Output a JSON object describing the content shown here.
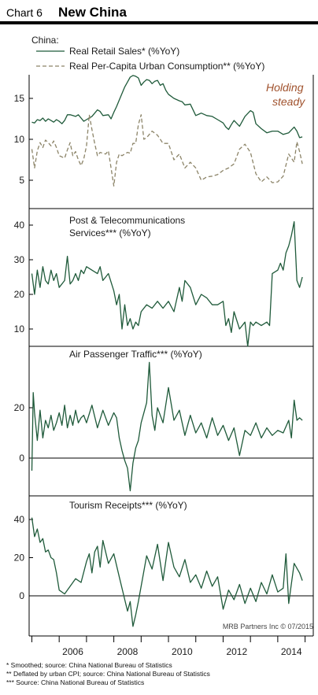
{
  "header": {
    "chart_number": "Chart 6",
    "title": "New China"
  },
  "credit": "MRB Partners Inc © 07/2015",
  "footnotes": [
    "*   Smoothed; source: China National Bureau of Statistics",
    "**  Deflated by urban CPI; source: China National Bureau of Statistics",
    "*** Source: China National Bureau of Statistics"
  ],
  "colors": {
    "retail": "#1f5a3a",
    "consumption": "#8c8468",
    "annotation": "#a0522d",
    "axis": "#000000"
  },
  "chart_data": [
    {
      "type": "line",
      "legend_title": "China:",
      "annotation": [
        "Holding",
        "steady"
      ],
      "x_range": [
        2004.9,
        2015.3
      ],
      "ylim": [
        3,
        19
      ],
      "yticks": [
        5,
        10,
        15
      ],
      "series": [
        {
          "name": "Real Retail Sales* (%YoY)",
          "style": "solid",
          "x": [
            2005.0,
            2005.1,
            2005.2,
            2005.3,
            2005.4,
            2005.5,
            2005.6,
            2005.7,
            2005.8,
            2005.9,
            2006.0,
            2006.1,
            2006.2,
            2006.3,
            2006.4,
            2006.5,
            2006.6,
            2006.7,
            2006.8,
            2006.9,
            2007.0,
            2007.2,
            2007.4,
            2007.5,
            2007.6,
            2007.8,
            2007.9,
            2008.0,
            2008.1,
            2008.2,
            2008.3,
            2008.4,
            2008.5,
            2008.6,
            2008.7,
            2008.8,
            2008.9,
            2009.0,
            2009.1,
            2009.2,
            2009.3,
            2009.4,
            2009.5,
            2009.6,
            2009.7,
            2009.8,
            2009.9,
            2010.0,
            2010.2,
            2010.4,
            2010.5,
            2010.6,
            2010.8,
            2011.0,
            2011.2,
            2011.4,
            2011.6,
            2011.8,
            2012.0,
            2012.1,
            2012.2,
            2012.3,
            2012.4,
            2012.6,
            2012.8,
            2013.0,
            2013.1,
            2013.2,
            2013.4,
            2013.6,
            2013.8,
            2014.0,
            2014.2,
            2014.4,
            2014.6,
            2014.7,
            2014.8,
            2014.9
          ],
          "y": [
            12.1,
            12.0,
            12.4,
            12.3,
            12.6,
            12.2,
            12.5,
            12.3,
            12.1,
            12.4,
            12.2,
            11.9,
            12.3,
            13.0,
            13.0,
            12.9,
            12.8,
            13.0,
            12.6,
            12.2,
            12.4,
            12.8,
            13.6,
            13.4,
            12.9,
            13.0,
            12.5,
            13.3,
            14.0,
            14.8,
            15.6,
            16.4,
            17.0,
            17.6,
            17.8,
            17.7,
            17.5,
            16.6,
            17.0,
            17.3,
            17.2,
            16.8,
            17.1,
            17.2,
            16.6,
            16.8,
            16.0,
            15.5,
            15.0,
            14.7,
            14.6,
            14.2,
            14.3,
            12.9,
            13.2,
            12.9,
            12.8,
            12.4,
            12.0,
            11.5,
            11.2,
            11.8,
            12.3,
            11.6,
            12.8,
            13.5,
            13.3,
            11.9,
            11.3,
            10.8,
            11.0,
            11.0,
            10.6,
            10.8,
            11.5,
            11.0,
            10.2,
            10.3
          ]
        },
        {
          "name": "Real Per-Capita Urban Consumption** (%YoY)",
          "style": "dashed",
          "x": [
            2005.0,
            2005.1,
            2005.2,
            2005.3,
            2005.4,
            2005.5,
            2005.6,
            2005.7,
            2005.8,
            2005.9,
            2006.0,
            2006.2,
            2006.3,
            2006.4,
            2006.5,
            2006.6,
            2006.7,
            2006.8,
            2006.9,
            2007.0,
            2007.1,
            2007.2,
            2007.3,
            2007.4,
            2007.5,
            2007.6,
            2007.7,
            2007.8,
            2007.9,
            2008.0,
            2008.1,
            2008.2,
            2008.3,
            2008.4,
            2008.5,
            2008.6,
            2008.7,
            2008.8,
            2008.9,
            2009.0,
            2009.1,
            2009.2,
            2009.3,
            2009.4,
            2009.6,
            2009.8,
            2010.0,
            2010.2,
            2010.4,
            2010.6,
            2010.8,
            2011.0,
            2011.2,
            2011.4,
            2011.6,
            2011.8,
            2012.0,
            2012.2,
            2012.4,
            2012.6,
            2012.8,
            2013.0,
            2013.2,
            2013.4,
            2013.6,
            2013.8,
            2014.0,
            2014.2,
            2014.4,
            2014.6,
            2014.7,
            2014.8,
            2014.9
          ],
          "y": [
            8.8,
            6.5,
            8.6,
            9.6,
            9.0,
            9.9,
            9.6,
            9.2,
            9.8,
            9.0,
            8.0,
            7.7,
            8.7,
            9.6,
            8.0,
            8.5,
            7.5,
            6.8,
            7.6,
            9.2,
            13.0,
            11.2,
            9.5,
            8.0,
            8.4,
            8.3,
            8.2,
            8.6,
            6.5,
            4.3,
            7.2,
            8.2,
            8.0,
            8.2,
            8.4,
            8.3,
            9.5,
            9.5,
            11.8,
            13.0,
            10.0,
            10.2,
            10.6,
            11.0,
            10.5,
            9.5,
            9.5,
            7.5,
            8.2,
            6.5,
            7.2,
            6.5,
            5.0,
            5.4,
            5.5,
            5.7,
            6.2,
            6.5,
            7.0,
            8.8,
            9.4,
            8.4,
            5.8,
            4.8,
            5.4,
            4.7,
            4.8,
            5.5,
            8.2,
            7.2,
            9.7,
            8.5,
            7.0
          ]
        }
      ]
    },
    {
      "type": "line",
      "title_lines": [
        "Post & Telecommunications",
        "Services*** (%YoY)"
      ],
      "x_range": [
        2004.9,
        2015.3
      ],
      "ylim": [
        7,
        44
      ],
      "yticks": [
        10,
        20,
        30,
        40
      ],
      "series": [
        {
          "name": "",
          "style": "solid",
          "x": [
            2005.0,
            2005.1,
            2005.2,
            2005.3,
            2005.4,
            2005.5,
            2005.6,
            2005.7,
            2005.8,
            2005.9,
            2006.0,
            2006.2,
            2006.3,
            2006.4,
            2006.5,
            2006.6,
            2006.7,
            2006.8,
            2006.9,
            2007.0,
            2007.2,
            2007.4,
            2007.5,
            2007.6,
            2007.8,
            2008.0,
            2008.1,
            2008.2,
            2008.3,
            2008.4,
            2008.5,
            2008.6,
            2008.7,
            2008.8,
            2008.9,
            2009.0,
            2009.2,
            2009.4,
            2009.6,
            2009.8,
            2010.0,
            2010.2,
            2010.4,
            2010.5,
            2010.6,
            2010.8,
            2011.0,
            2011.2,
            2011.4,
            2011.6,
            2011.8,
            2012.0,
            2012.1,
            2012.2,
            2012.3,
            2012.4,
            2012.6,
            2012.8,
            2012.9,
            2013.0,
            2013.1,
            2013.2,
            2013.4,
            2013.6,
            2013.7,
            2013.8,
            2014.0,
            2014.1,
            2014.2,
            2014.3,
            2014.4,
            2014.5,
            2014.6,
            2014.7,
            2014.8,
            2014.9
          ],
          "y": [
            26.0,
            20.0,
            27.0,
            22.0,
            28.0,
            24.0,
            23.0,
            27.0,
            24.0,
            26.0,
            22.0,
            24.0,
            31.0,
            23.0,
            24.0,
            26.0,
            24.0,
            27.0,
            26.0,
            28.0,
            27.0,
            26.0,
            28.0,
            24.0,
            26.0,
            21.0,
            17.0,
            20.0,
            10.0,
            17.0,
            11.0,
            13.0,
            10.0,
            12.0,
            11.0,
            15.0,
            17.0,
            16.0,
            18.0,
            16.0,
            18.0,
            15.0,
            22.0,
            18.0,
            24.0,
            22.0,
            17.0,
            20.0,
            19.0,
            17.0,
            17.0,
            18.0,
            11.0,
            13.0,
            9.0,
            15.0,
            10.0,
            12.0,
            5.0,
            12.0,
            11.0,
            12.0,
            11.0,
            12.0,
            11.0,
            26.0,
            27.0,
            29.0,
            27.0,
            32.0,
            34.0,
            37.0,
            41.0,
            24.0,
            22.0,
            25.0
          ]
        }
      ]
    },
    {
      "type": "line",
      "title": "Air Passenger Traffic*** (%YoY)",
      "x_range": [
        2004.9,
        2015.3
      ],
      "ylim": [
        -13,
        40
      ],
      "yticks": [
        0,
        20
      ],
      "series": [
        {
          "name": "",
          "style": "solid",
          "x": [
            2005.0,
            2005.05,
            2005.1,
            2005.2,
            2005.3,
            2005.4,
            2005.5,
            2005.6,
            2005.7,
            2005.8,
            2005.9,
            2006.0,
            2006.1,
            2006.2,
            2006.3,
            2006.4,
            2006.5,
            2006.6,
            2006.7,
            2006.8,
            2006.9,
            2007.0,
            2007.2,
            2007.4,
            2007.6,
            2007.8,
            2008.0,
            2008.1,
            2008.2,
            2008.3,
            2008.4,
            2008.5,
            2008.6,
            2008.7,
            2008.8,
            2008.9,
            2009.0,
            2009.1,
            2009.2,
            2009.3,
            2009.4,
            2009.5,
            2009.6,
            2009.8,
            2010.0,
            2010.2,
            2010.4,
            2010.6,
            2010.8,
            2011.0,
            2011.2,
            2011.4,
            2011.6,
            2011.8,
            2012.0,
            2012.2,
            2012.4,
            2012.6,
            2012.8,
            2013.0,
            2013.2,
            2013.4,
            2013.6,
            2013.8,
            2014.0,
            2014.2,
            2014.4,
            2014.5,
            2014.6,
            2014.7,
            2014.8,
            2014.9
          ],
          "y": [
            -5.0,
            26.0,
            18.0,
            7.0,
            19.0,
            8.0,
            15.0,
            12.0,
            17.0,
            11.0,
            14.0,
            18.0,
            13.0,
            21.0,
            12.0,
            17.0,
            13.0,
            19.0,
            14.0,
            16.0,
            17.0,
            14.0,
            21.0,
            12.0,
            19.0,
            13.0,
            18.0,
            16.0,
            8.0,
            3.0,
            -1.0,
            -4.0,
            -13.0,
            -2.0,
            4.0,
            7.0,
            14.0,
            18.0,
            22.0,
            38.0,
            17.0,
            11.0,
            20.0,
            14.0,
            28.0,
            15.0,
            19.0,
            9.0,
            17.0,
            10.0,
            14.0,
            8.0,
            16.0,
            9.0,
            13.0,
            7.0,
            12.0,
            1.0,
            11.0,
            9.0,
            14.0,
            8.0,
            12.0,
            9.0,
            11.0,
            10.0,
            15.0,
            8.0,
            23.0,
            15.0,
            16.0,
            15.0
          ]
        }
      ]
    },
    {
      "type": "line",
      "title": "Tourism Receipts*** (%YoY)",
      "x_range": [
        2004.9,
        2015.3
      ],
      "ylim": [
        -17,
        42
      ],
      "yticks": [
        0,
        20,
        40
      ],
      "series": [
        {
          "name": "",
          "style": "solid",
          "x": [
            2005.0,
            2005.1,
            2005.2,
            2005.3,
            2005.4,
            2005.5,
            2005.6,
            2005.7,
            2005.8,
            2005.9,
            2006.0,
            2006.2,
            2006.4,
            2006.6,
            2006.8,
            2007.0,
            2007.1,
            2007.2,
            2007.3,
            2007.4,
            2007.5,
            2007.6,
            2007.8,
            2008.0,
            2008.2,
            2008.4,
            2008.5,
            2008.6,
            2008.7,
            2008.8,
            2008.9,
            2009.0,
            2009.2,
            2009.4,
            2009.6,
            2009.8,
            2010.0,
            2010.2,
            2010.4,
            2010.6,
            2010.8,
            2011.0,
            2011.2,
            2011.4,
            2011.6,
            2011.8,
            2012.0,
            2012.2,
            2012.4,
            2012.6,
            2012.8,
            2013.0,
            2013.2,
            2013.4,
            2013.6,
            2013.8,
            2014.0,
            2014.2,
            2014.3,
            2014.4,
            2014.6,
            2014.8,
            2014.9
          ],
          "y": [
            41.0,
            31.0,
            35.0,
            28.0,
            30.0,
            23.0,
            24.0,
            20.0,
            19.0,
            12.0,
            3.0,
            1.0,
            5.0,
            9.0,
            7.0,
            18.0,
            22.0,
            12.0,
            23.0,
            26.0,
            15.0,
            29.0,
            17.0,
            22.0,
            10.0,
            -2.0,
            -8.0,
            -3.0,
            -16.0,
            -10.0,
            -3.0,
            5.0,
            21.0,
            14.0,
            27.0,
            8.0,
            28.0,
            15.0,
            10.0,
            19.0,
            7.0,
            11.0,
            4.0,
            13.0,
            5.0,
            10.0,
            -7.0,
            3.0,
            -2.0,
            6.0,
            -4.0,
            4.0,
            -3.0,
            7.0,
            1.0,
            11.0,
            2.0,
            4.0,
            22.0,
            -4.0,
            17.0,
            12.0,
            8.0
          ]
        }
      ]
    }
  ],
  "x_axis": {
    "ticks": [
      "2006",
      "2008",
      "2010",
      "2012",
      "2014"
    ],
    "tick_values": [
      2006,
      2008,
      2010,
      2012,
      2014
    ]
  }
}
